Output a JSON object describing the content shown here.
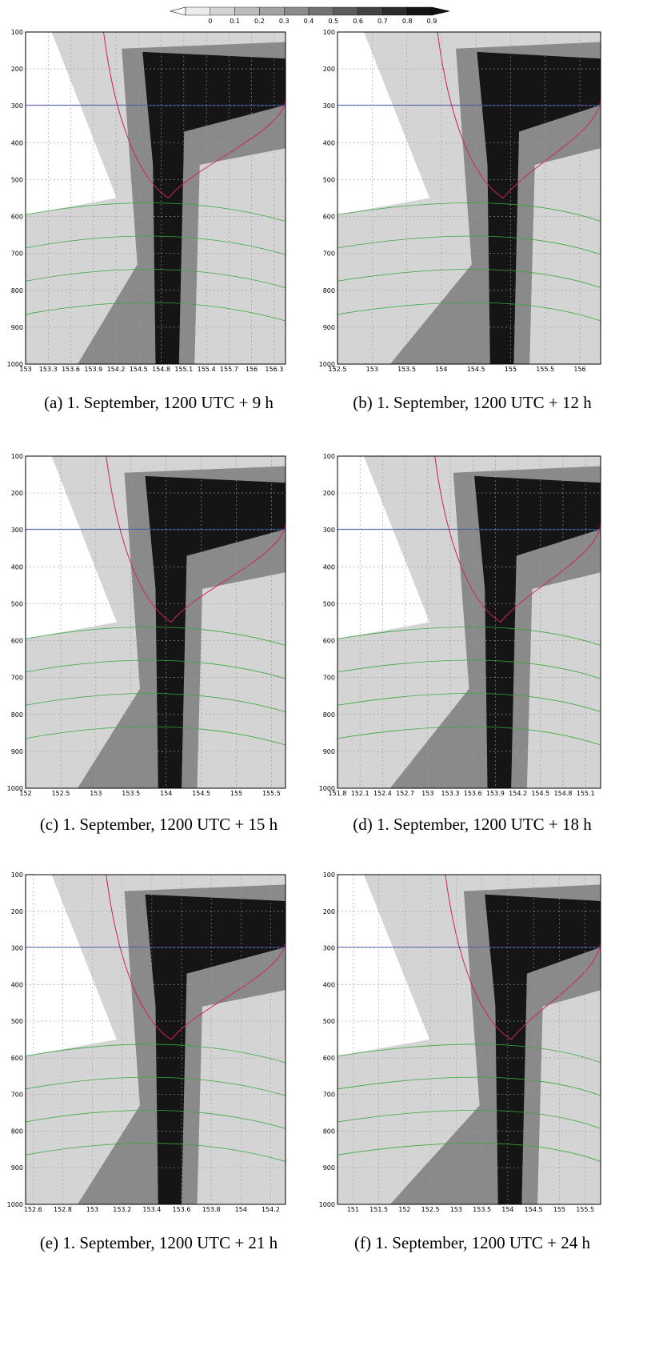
{
  "colorbar": {
    "ticks": [
      0,
      0.1,
      0.2,
      0.3,
      0.4,
      0.5,
      0.6,
      0.7,
      0.8,
      0.9
    ]
  },
  "panels": [
    {
      "caption": "(a) 1. September, 1200 UTC + 9 h",
      "xlim": [
        153,
        156.45
      ],
      "xticks": [
        153,
        153.3,
        153.6,
        153.9,
        154.2,
        154.5,
        154.8,
        155.1,
        155.4,
        155.7,
        156,
        156.3
      ],
      "ylim": [
        100,
        1000
      ],
      "yticks": [
        100,
        200,
        300,
        400,
        500,
        600,
        700,
        800,
        900,
        1000
      ]
    },
    {
      "caption": "(b) 1. September, 1200 UTC + 12 h",
      "xlim": [
        152.5,
        156.3
      ],
      "xticks": [
        152.5,
        153,
        153.5,
        154,
        154.5,
        155,
        155.5,
        156
      ],
      "ylim": [
        100,
        1000
      ],
      "yticks": [
        100,
        200,
        300,
        400,
        500,
        600,
        700,
        800,
        900,
        1000
      ]
    },
    {
      "caption": "(c) 1. September, 1200 UTC + 15 h",
      "xlim": [
        152,
        155.7
      ],
      "xticks": [
        152,
        152.5,
        153,
        153.5,
        154,
        154.5,
        155,
        155.5
      ],
      "ylim": [
        100,
        1000
      ],
      "yticks": [
        100,
        200,
        300,
        400,
        500,
        600,
        700,
        800,
        900,
        1000
      ]
    },
    {
      "caption": "(d) 1. September, 1200 UTC + 18 h",
      "xlim": [
        151.8,
        155.3
      ],
      "xticks": [
        151.8,
        152.1,
        152.4,
        152.7,
        153,
        153.3,
        153.6,
        153.9,
        154.2,
        154.5,
        154.8,
        155.1
      ],
      "ylim": [
        100,
        1000
      ],
      "yticks": [
        100,
        200,
        300,
        400,
        500,
        600,
        700,
        800,
        900,
        1000
      ]
    },
    {
      "caption": "(e) 1. September, 1200 UTC + 21 h",
      "xlim": [
        152.55,
        154.3
      ],
      "xticks": [
        152.6,
        152.8,
        153,
        153.2,
        153.4,
        153.6,
        153.8,
        154,
        154.2
      ],
      "ylim": [
        100,
        1000
      ],
      "yticks": [
        100,
        200,
        300,
        400,
        500,
        600,
        700,
        800,
        900,
        1000
      ]
    },
    {
      "caption": "(f) 1. September, 1200 UTC + 24 h",
      "xlim": [
        150.7,
        155.8
      ],
      "xticks": [
        151,
        151.5,
        152,
        152.5,
        153,
        153.5,
        154,
        154.5,
        155,
        155.5
      ],
      "ylim": [
        100,
        1000
      ],
      "yticks": [
        100,
        200,
        300,
        400,
        500,
        600,
        700,
        800,
        900,
        1000
      ]
    }
  ]
}
